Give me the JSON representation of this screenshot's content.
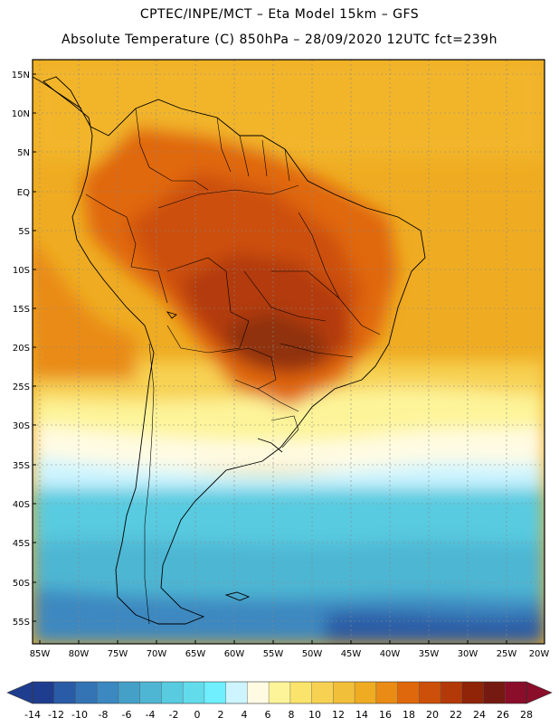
{
  "header": {
    "line1": "CPTEC/INPE/MCT –  Eta Model 15km – GFS",
    "line2": "Absolute Temperature (C) 850hPa – 28/09/2020 12UTC fct=239h"
  },
  "map": {
    "lat_labels": [
      "15N",
      "10N",
      "5N",
      "EQ",
      "5S",
      "10S",
      "15S",
      "20S",
      "25S",
      "30S",
      "35S",
      "40S",
      "45S",
      "50S",
      "55S"
    ],
    "lon_labels": [
      "85W",
      "80W",
      "75W",
      "70W",
      "65W",
      "60W",
      "55W",
      "50W",
      "45W",
      "40W",
      "35W",
      "30W",
      "25W",
      "20W"
    ]
  },
  "colorbar": {
    "labels": [
      "-14",
      "-12",
      "-10",
      "-8",
      "-6",
      "-4",
      "-2",
      "0",
      "2",
      "4",
      "6",
      "8",
      "10",
      "12",
      "14",
      "16",
      "18",
      "20",
      "22",
      "24",
      "26",
      "28"
    ],
    "colors": [
      "#1f3d8f",
      "#2a5ba6",
      "#3474b5",
      "#3c88c0",
      "#45a0c8",
      "#4eb6d3",
      "#58cbe0",
      "#62dceb",
      "#6fefff",
      "#cdf4ff",
      "#fffbe3",
      "#fdf49a",
      "#fbe46b",
      "#f7d252",
      "#f2bf3a",
      "#efac22",
      "#e98b14",
      "#e0680c",
      "#cc500a",
      "#b33a08",
      "#8f2408",
      "#751a10",
      "#8a0d2a"
    ],
    "arrow_left": "#1f3d8f",
    "arrow_right": "#8a0d2a"
  },
  "field_colors": {
    "ocean_warm": "#efac22",
    "land_hot": "#cc5a10",
    "core_hottest": "#8f3010",
    "cold_sea": "#58cbe0",
    "cold_deep": "#2a5ba6"
  }
}
